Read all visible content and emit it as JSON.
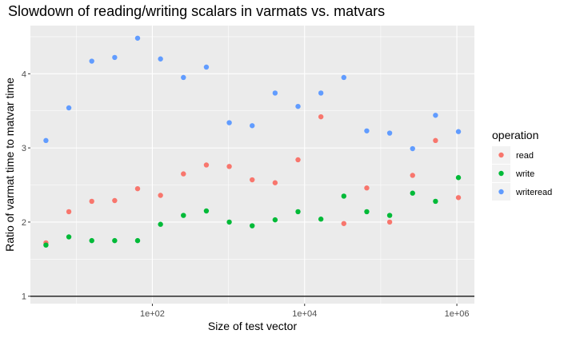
{
  "chart_data": {
    "type": "scatter",
    "title": "Slowdown of reading/writing scalars in varmats vs. matvars",
    "xlabel": "Size of test vector",
    "ylabel": "Ratio of varmat time to matvar time",
    "x_scale": "log10",
    "xlim": [
      2.5,
      1700000
    ],
    "ylim": [
      0.9,
      4.65
    ],
    "x_ticks": [
      {
        "value": 100,
        "label": "1e+02"
      },
      {
        "value": 10000,
        "label": "1e+04"
      },
      {
        "value": 1000000,
        "label": "1e+06"
      }
    ],
    "y_ticks": [
      {
        "value": 1,
        "label": "1"
      },
      {
        "value": 2,
        "label": "2"
      },
      {
        "value": 3,
        "label": "3"
      },
      {
        "value": 4,
        "label": "4"
      }
    ],
    "reference_line_y": 1,
    "grid": true,
    "legend": {
      "title": "operation",
      "position": "right"
    },
    "x": [
      4,
      8,
      16,
      32,
      64,
      128,
      256,
      512,
      1024,
      2048,
      4096,
      8192,
      16384,
      32768,
      65536,
      131072,
      262144,
      524288,
      1048576
    ],
    "series": [
      {
        "name": "read",
        "color": "#F8766D",
        "values": [
          1.72,
          2.14,
          2.28,
          2.29,
          2.45,
          2.36,
          2.65,
          2.77,
          2.75,
          2.57,
          2.53,
          2.84,
          3.42,
          1.98,
          2.46,
          2.0,
          2.63,
          3.1,
          2.33
        ]
      },
      {
        "name": "write",
        "color": "#00BA38",
        "values": [
          1.69,
          1.8,
          1.75,
          1.75,
          1.75,
          1.97,
          2.09,
          2.15,
          2.0,
          1.95,
          2.03,
          2.14,
          2.04,
          2.35,
          2.14,
          2.09,
          2.39,
          2.28,
          2.6
        ]
      },
      {
        "name": "writeread",
        "color": "#619CFF",
        "values": [
          3.1,
          3.54,
          4.17,
          4.22,
          4.48,
          4.2,
          3.95,
          4.09,
          3.34,
          3.3,
          3.74,
          3.56,
          3.74,
          3.95,
          3.23,
          3.2,
          2.99,
          3.44,
          3.22
        ]
      }
    ]
  }
}
